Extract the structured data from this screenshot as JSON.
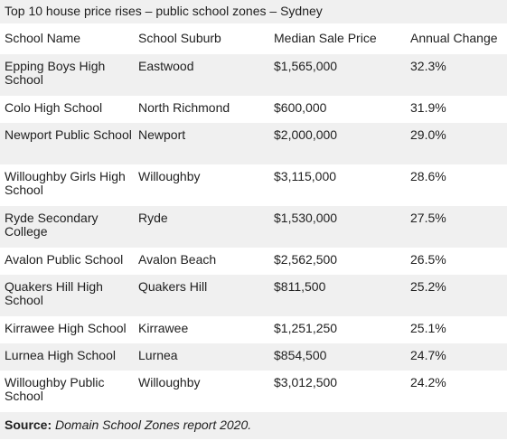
{
  "title": "Top 10 house price rises – public school zones – Sydney",
  "columns": [
    "School Name",
    "School Suburb",
    "Median Sale Price",
    "Annual Change"
  ],
  "rows": [
    {
      "school": "Epping Boys High School",
      "suburb": "Eastwood",
      "price": "$1,565,000",
      "change": "32.3%"
    },
    {
      "school": "Colo High School",
      "suburb": "North Richmond",
      "price": "$600,000",
      "change": "31.9%"
    },
    {
      "school": "Newport Public School",
      "suburb": "Newport",
      "price": "$2,000,000",
      "change": "29.0%"
    },
    {
      "school": "Willoughby Girls High School",
      "suburb": "Willoughby",
      "price": "$3,115,000",
      "change": "28.6%"
    },
    {
      "school": "Ryde Secondary College",
      "suburb": "Ryde",
      "price": "$1,530,000",
      "change": "27.5%"
    },
    {
      "school": "Avalon Public School",
      "suburb": "Avalon Beach",
      "price": "$2,562,500",
      "change": "26.5%"
    },
    {
      "school": "Quakers Hill High School",
      "suburb": "Quakers Hill",
      "price": "$811,500",
      "change": "25.2%"
    },
    {
      "school": "Kirrawee High School",
      "suburb": "Kirrawee",
      "price": "$1,251,250",
      "change": "25.1%"
    },
    {
      "school": "Lurnea High School",
      "suburb": "Lurnea",
      "price": "$854,500",
      "change": "24.7%"
    },
    {
      "school": "Willoughby Public School",
      "suburb": "Willoughby",
      "price": "$3,012,500",
      "change": "24.2%"
    }
  ],
  "footer": {
    "label": "Source:",
    "text": "Domain School Zones report 2020."
  },
  "colors": {
    "stripe": "#f0f0f0",
    "text": "#1f1f1f"
  }
}
